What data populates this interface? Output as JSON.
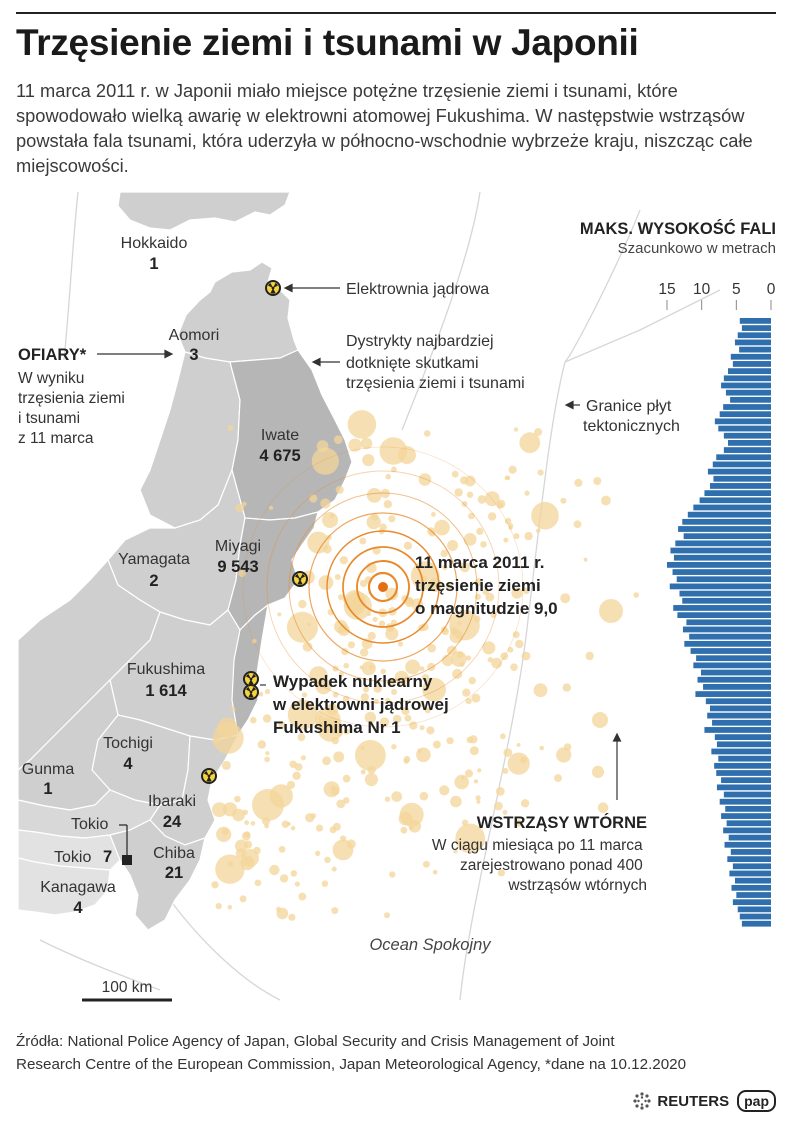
{
  "title": "Trzęsienie ziemi i tsunami w Japonii",
  "lede": "11 marca 2011 r. w Japonii miało miejsce potężne trzęsienie ziemi i tsunami, które spowodowało wielką awarię w elektrowni atomowej Fukushima. W następstwie wstrząsów powstała fala tsunami, która uderzyła w północno-wschodnie wybrzeże kraju, niszcząc całe miejscowości.",
  "legend": {
    "nuclear_plant": "Elektrownia jądrowa",
    "districts": [
      "Dystrykty najbardziej",
      "dotknięte skutkami",
      "trzęsienia ziemi i tsunami"
    ],
    "plates": [
      "Granice płyt",
      "tektonicznych"
    ]
  },
  "victims": {
    "title": "OFIARY*",
    "desc": [
      "W wyniku",
      "trzęsienia ziemi",
      "i tsunami",
      "z 11 marca"
    ]
  },
  "prefectures": [
    {
      "name": "Hokkaido",
      "value": "1"
    },
    {
      "name": "Aomori",
      "value": "3"
    },
    {
      "name": "Iwate",
      "value": "4 675"
    },
    {
      "name": "Yamagata",
      "value": "2"
    },
    {
      "name": "Miyagi",
      "value": "9 543"
    },
    {
      "name": "Fukushima",
      "value": "1 614"
    },
    {
      "name": "Tochigi",
      "value": "4"
    },
    {
      "name": "Gunma",
      "value": "1"
    },
    {
      "name": "Ibaraki",
      "value": "24"
    },
    {
      "name": "Tokio",
      "value": "7"
    },
    {
      "name": "Chiba",
      "value": "21"
    },
    {
      "name": "Kanagawa",
      "value": "4"
    }
  ],
  "tokyo_marker": "Tokio",
  "epicenter": [
    "11 marca 2011 r.",
    "trzęsienie ziemi",
    "o magnitudzie 9,0"
  ],
  "accident": [
    "Wypadek nuklearny",
    "w elektrowni jądrowej",
    "Fukushima Nr 1"
  ],
  "aftershocks": {
    "title": "WSTRZĄSY WTÓRNE",
    "desc": [
      "W ciągu miesiąca po 11 marca",
      "zarejestrowano ponad 400",
      "wstrząsów wtórnych"
    ]
  },
  "ocean": "Ocean Spokojny",
  "scale": "100 km",
  "wave_chart": {
    "title": "MAKS. WYSOKOŚĆ FALI",
    "subtitle": "Szacunkowo w metrach",
    "ticks": [
      "15",
      "10",
      "5",
      "0"
    ],
    "xlim": [
      0,
      16
    ],
    "bar_color": "#2f6fae",
    "values": [
      4.5,
      4.2,
      4.8,
      5.2,
      4.6,
      5.8,
      5.5,
      6.2,
      6.8,
      7.2,
      6.5,
      5.9,
      6.9,
      7.4,
      8.1,
      7.6,
      6.8,
      6.2,
      6.8,
      7.9,
      8.4,
      9.1,
      8.3,
      8.8,
      9.6,
      10.3,
      11.2,
      12.0,
      12.8,
      13.4,
      12.6,
      13.8,
      14.5,
      14.0,
      15.0,
      14.2,
      13.6,
      14.6,
      13.2,
      12.8,
      14.1,
      13.5,
      12.2,
      12.7,
      11.8,
      12.5,
      11.6,
      10.8,
      11.2,
      10.1,
      10.6,
      9.8,
      10.9,
      9.4,
      8.8,
      9.2,
      8.5,
      9.6,
      8.1,
      7.8,
      8.6,
      7.6,
      8.2,
      7.9,
      7.2,
      7.8,
      6.8,
      7.4,
      6.6,
      7.2,
      6.4,
      6.9,
      6.1,
      6.7,
      5.8,
      6.3,
      5.5,
      6.0,
      5.2,
      5.7,
      5.0,
      5.5,
      4.8,
      4.5,
      4.2
    ]
  },
  "sources": [
    "Źródła: National Police Agency of Japan, Global Security and Crisis Management of Joint",
    "Research Centre of the European Commission, Japan Meteorological Agency, *dane na 10.12.2020"
  ],
  "logos": {
    "reuters": "REUTERS",
    "pap": "pap"
  },
  "colors": {
    "land": "#cfcfcf",
    "land_affected": "#b6b6b6",
    "border": "#ffffff",
    "rings": "#e88a2c",
    "epicenter": "#e36f12",
    "aftershock": "#f3d69a"
  }
}
